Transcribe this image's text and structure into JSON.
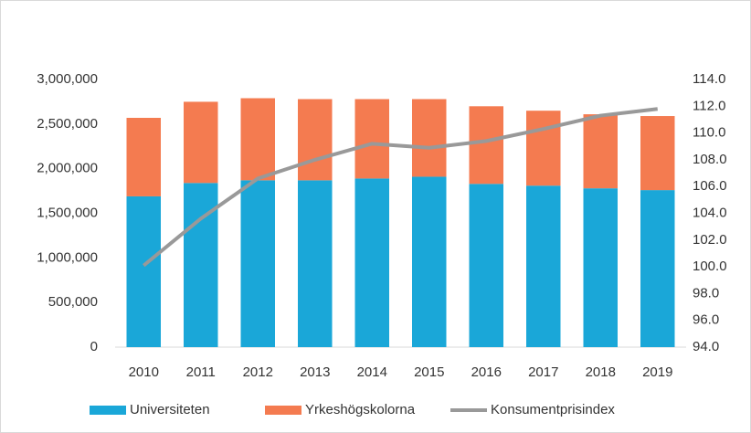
{
  "chart_data": {
    "type": "bar",
    "stacked": true,
    "categories": [
      "2010",
      "2011",
      "2012",
      "2013",
      "2014",
      "2015",
      "2016",
      "2017",
      "2018",
      "2019"
    ],
    "series": [
      {
        "name": "Universiteten",
        "color": "#1aa7d8",
        "values": [
          1690000,
          1840000,
          1870000,
          1870000,
          1890000,
          1910000,
          1830000,
          1810000,
          1780000,
          1760000
        ]
      },
      {
        "name": "Yrkeshögskolorna",
        "color": "#f47b50",
        "values": [
          880000,
          910000,
          920000,
          910000,
          890000,
          870000,
          870000,
          840000,
          830000,
          830000
        ]
      },
      {
        "name": "Konsumentprisindex",
        "type": "line",
        "axis": "y2",
        "color": "#999999",
        "values": [
          100.1,
          103.6,
          106.6,
          108.0,
          109.2,
          108.9,
          109.4,
          110.3,
          111.3,
          111.8
        ]
      }
    ],
    "ylim": [
      0,
      3000000
    ],
    "yticks": [
      0,
      {
        "value": 500000,
        "label": "500,000"
      },
      {
        "value": 1000000,
        "label": "1,000,000"
      },
      {
        "value": 1500000,
        "label": "1,500,000"
      },
      {
        "value": 2000000,
        "label": "2,000,000"
      },
      {
        "value": 2500000,
        "label": "2,500,000"
      },
      {
        "value": 3000000,
        "label": "3,000,000"
      }
    ],
    "y2lim": [
      94,
      114
    ],
    "y2ticks": [
      {
        "value": 94,
        "label": "94.0"
      },
      {
        "value": 96,
        "label": "96.0"
      },
      {
        "value": 98,
        "label": "98.0"
      },
      {
        "value": 100,
        "label": "100.0"
      },
      {
        "value": 102,
        "label": "102.0"
      },
      {
        "value": 104,
        "label": "104.0"
      },
      {
        "value": 106,
        "label": "106.0"
      },
      {
        "value": 108,
        "label": "108.0"
      },
      {
        "value": 110,
        "label": "110.0"
      },
      {
        "value": 112,
        "label": "112.0"
      },
      {
        "value": 114,
        "label": "114.0"
      }
    ],
    "legend": "bottom"
  }
}
